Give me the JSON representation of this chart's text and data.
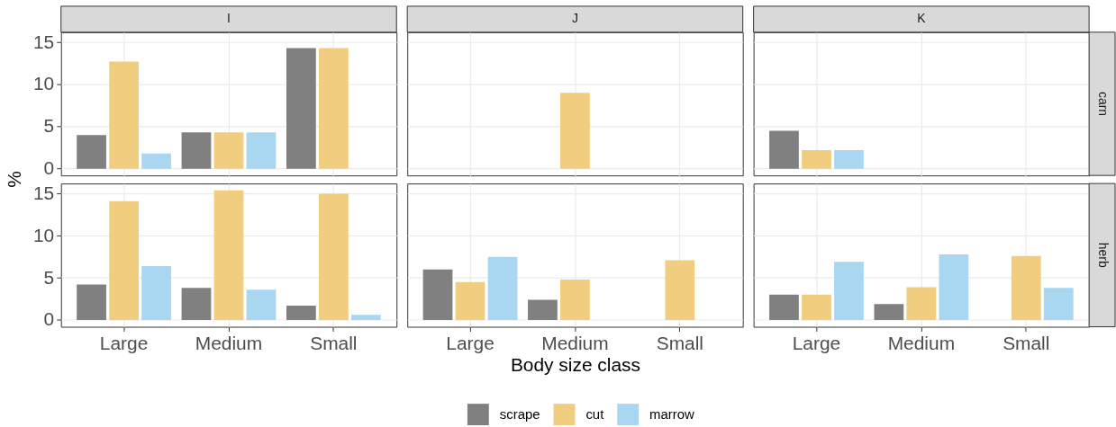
{
  "chart_data": [
    {
      "type": "bar",
      "title": "I",
      "ylabel": "%",
      "legend": "bottom",
      "categories": [
        "Large",
        "Medium",
        "Small"
      ],
      "series": [
        {
          "name": "scrape",
          "color": "#808080",
          "values": [
            4.0,
            4.3,
            14.3
          ]
        },
        {
          "name": "cut",
          "color": "#f1ce7f",
          "values": [
            12.7,
            4.3,
            14.3
          ]
        },
        {
          "name": "marrow",
          "color": "#a9d7f1",
          "values": [
            1.8,
            4.3,
            null
          ]
        }
      ],
      "ylim": [
        -0.8,
        16.2
      ],
      "yticks": [
        0,
        5,
        10,
        15
      ],
      "grid": true,
      "tick_labels": "y"
    },
    {
      "type": "bar",
      "title": "J",
      "categories": [
        "Large",
        "Medium",
        "Small"
      ],
      "series": [
        {
          "color": "#808080",
          "values": [
            null,
            null,
            null
          ]
        },
        {
          "color": "#f1ce7f",
          "values": [
            null,
            9.0,
            null
          ]
        },
        {
          "color": "#a9d7f1",
          "values": [
            null,
            null,
            null
          ]
        }
      ],
      "ylim": [
        -0.8,
        16.2
      ],
      "yticks": [
        0,
        5,
        10,
        15
      ],
      "grid": true,
      "tick_labels": false
    },
    {
      "type": "bar",
      "title": "K",
      "annotations": [
        "carn"
      ],
      "categories": [
        "Large",
        "Medium",
        "Small"
      ],
      "series": [
        {
          "color": "#808080",
          "values": [
            4.5,
            null,
            null
          ]
        },
        {
          "color": "#f1ce7f",
          "values": [
            2.2,
            null,
            null
          ]
        },
        {
          "color": "#a9d7f1",
          "values": [
            2.2,
            null,
            null
          ]
        }
      ],
      "ylim": [
        -0.8,
        16.2
      ],
      "yticks": [
        0,
        5,
        10,
        15
      ],
      "grid": true,
      "tick_labels": false
    },
    {
      "type": "bar",
      "categories": [
        "Large",
        "Medium",
        "Small"
      ],
      "series": [
        {
          "color": "#808080",
          "values": [
            4.2,
            3.8,
            1.7
          ]
        },
        {
          "color": "#f1ce7f",
          "values": [
            14.1,
            15.4,
            15.0
          ]
        },
        {
          "color": "#a9d7f1",
          "values": [
            6.4,
            3.6,
            0.6
          ]
        }
      ],
      "ylim": [
        -0.8,
        16.2
      ],
      "yticks": [
        0,
        5,
        10,
        15
      ],
      "grid": true
    },
    {
      "type": "bar",
      "xlabel": "Body size class",
      "categories": [
        "Large",
        "Medium",
        "Small"
      ],
      "series": [
        {
          "color": "#808080",
          "values": [
            6.0,
            2.4,
            null
          ]
        },
        {
          "color": "#f1ce7f",
          "values": [
            4.5,
            4.8,
            7.1
          ]
        },
        {
          "color": "#a9d7f1",
          "values": [
            7.5,
            null,
            null
          ]
        }
      ],
      "ylim": [
        -0.8,
        16.2
      ],
      "yticks": [
        0,
        5,
        10,
        15
      ],
      "grid": true,
      "tick_labels": "x"
    },
    {
      "type": "bar",
      "annotations": [
        "herb"
      ],
      "categories": [
        "Large",
        "Medium",
        "Small"
      ],
      "series": [
        {
          "color": "#808080",
          "values": [
            3.0,
            1.9,
            null
          ]
        },
        {
          "color": "#f1ce7f",
          "values": [
            3.0,
            3.9,
            7.6
          ]
        },
        {
          "color": "#a9d7f1",
          "values": [
            6.9,
            7.8,
            3.8
          ]
        }
      ],
      "ylim": [
        -0.8,
        16.2
      ],
      "yticks": [
        0,
        5,
        10,
        15
      ],
      "grid": true,
      "tick_labels": "x"
    }
  ]
}
